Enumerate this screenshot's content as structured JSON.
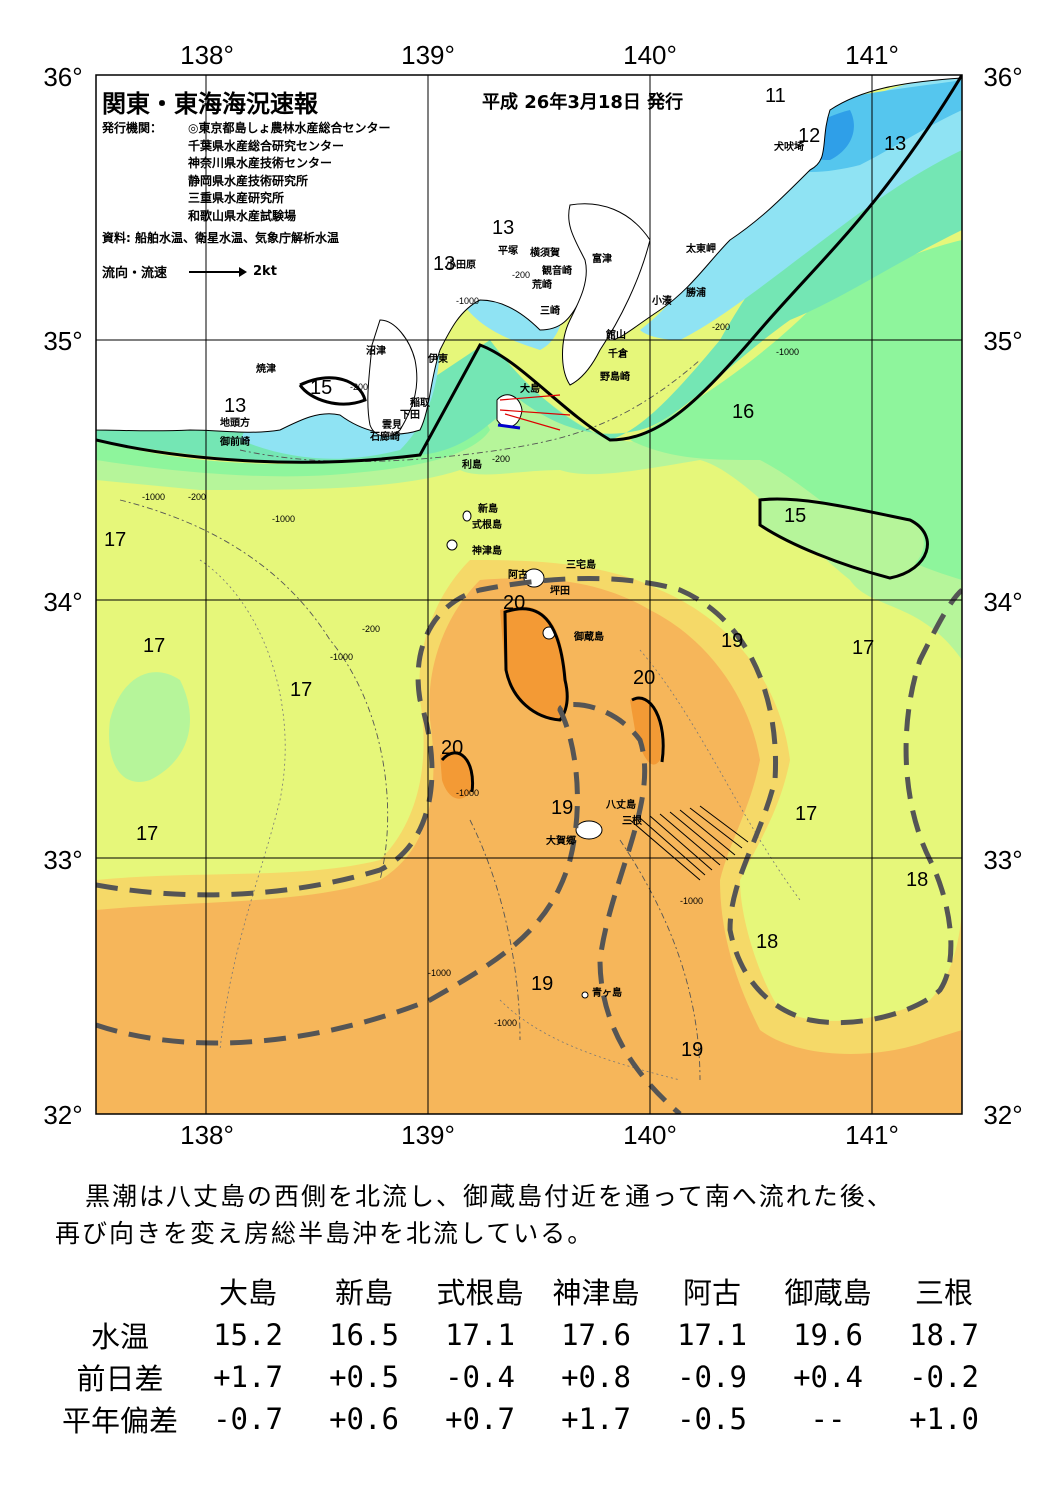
{
  "header": {
    "title": "関東・東海海況速報",
    "issue_date": "平成 26年3月18日 発行",
    "issuer_label": "発行機関：",
    "issuers": [
      "◎東京都島しょ農林水産総合センター",
      "千葉県水産総合研究センター",
      "神奈川県水産技術センター",
      "静岡県水産技術研究所",
      "三重県水産研究所",
      "和歌山県水産試験場"
    ],
    "sources": "資料: 船舶水温、衛星水温、気象庁解析水温",
    "legend_label": "流向・流速",
    "legend_scale": "2kt"
  },
  "axes": {
    "lon_labels": [
      "138°",
      "139°",
      "140°",
      "141°"
    ],
    "lat_labels": [
      "36°",
      "35°",
      "34°",
      "33°",
      "32°"
    ]
  },
  "colors": {
    "c11": "#2f9fe8",
    "c12": "#55c6ee",
    "c13": "#8fe3f3",
    "c14": "#74e6b4",
    "c15": "#8ef59c",
    "c16": "#b6f59a",
    "c17": "#e6f77a",
    "c18": "#f5d968",
    "c19": "#f6b65a",
    "c20": "#f39a35",
    "land": "#ffffff",
    "kuroshio_axis": "#555555"
  },
  "isotherm_labels": [
    "11",
    "12",
    "13",
    "13",
    "13",
    "13",
    "15",
    "16",
    "15",
    "17",
    "17",
    "17",
    "17",
    "17",
    "17",
    "20",
    "19",
    "20",
    "20",
    "19",
    "18",
    "18",
    "19",
    "19"
  ],
  "depth_labels": [
    "-200",
    "-1000",
    "-200",
    "-1000",
    "-200",
    "-200",
    "-1000",
    "-200",
    "-1000",
    "-1000",
    "-200",
    "-1000",
    "-1000",
    "-1000",
    "-1000"
  ],
  "places": [
    "犬吠埼",
    "富津",
    "平塚",
    "横須賀",
    "観音崎",
    "荒崎",
    "三崎",
    "館山",
    "千倉",
    "野島崎",
    "小湊",
    "勝浦",
    "太東岬",
    "小田原",
    "沼津",
    "伊東",
    "焼津",
    "稲取",
    "下田",
    "雲見",
    "石廊崎",
    "地頭方",
    "御前崎",
    "大島",
    "利島",
    "新島",
    "式根島",
    "神津島",
    "三宅島",
    "阿古",
    "坪田",
    "御蔵島",
    "八丈島",
    "大賀郷",
    "三根",
    "青ヶ島"
  ],
  "summary": [
    "黒潮は八丈島の西側を北流し、御蔵島付近を通って南へ流れた後、",
    "再び向きを変え房総半島沖を北流している。"
  ],
  "table": {
    "columns": [
      "大島",
      "新島",
      "式根島",
      "神津島",
      "阿古",
      "御蔵島",
      "三根"
    ],
    "rows": [
      {
        "label": "水温",
        "values": [
          "15.2",
          "16.5",
          "17.1",
          "17.6",
          "17.1",
          "19.6",
          "18.7"
        ]
      },
      {
        "label": "前日差",
        "values": [
          "+1.7",
          "+0.5",
          "-0.4",
          "+0.8",
          "-0.9",
          "+0.4",
          "-0.2"
        ]
      },
      {
        "label": "平年偏差",
        "values": [
          "-0.7",
          "+0.6",
          "+0.7",
          "+1.7",
          "-0.5",
          "--",
          "+1.0"
        ]
      }
    ]
  }
}
